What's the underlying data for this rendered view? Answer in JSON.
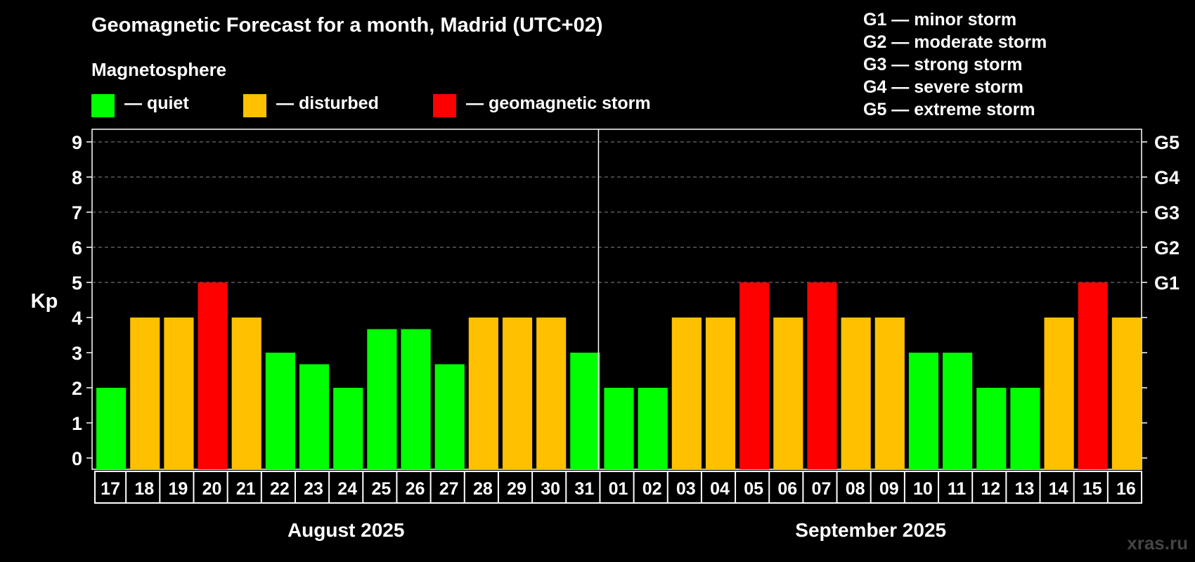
{
  "header": {
    "title": "Geomagnetic Forecast for a month, Madrid (UTC+02)",
    "subtitle": "Magnetosphere"
  },
  "legend": [
    {
      "label": "— quiet",
      "color": "#00ff00"
    },
    {
      "label": "— disturbed",
      "color": "#ffc000"
    },
    {
      "label": "— geomagnetic storm",
      "color": "#ff0000"
    }
  ],
  "gscale": [
    "G1 — minor storm",
    "G2 — moderate storm",
    "G3 — strong storm",
    "G4 — severe storm",
    "G5 — extreme storm"
  ],
  "watermark": "xras.ru",
  "chart_data": {
    "type": "bar",
    "ylabel": "Kp",
    "ylim": [
      0,
      9
    ],
    "yticks": [
      "0",
      "1",
      "2",
      "3",
      "4",
      "5",
      "6",
      "7",
      "8",
      "9"
    ],
    "right_ticks": [
      {
        "value": 5,
        "label": "G1"
      },
      {
        "value": 6,
        "label": "G2"
      },
      {
        "value": 7,
        "label": "G3"
      },
      {
        "value": 8,
        "label": "G4"
      },
      {
        "value": 9,
        "label": "G5"
      }
    ],
    "grid": "dashed horizontal at 5-9",
    "months": [
      {
        "label": "August 2025",
        "days": 15
      },
      {
        "label": "September 2025",
        "days": 16
      }
    ],
    "categories": [
      "17",
      "18",
      "19",
      "20",
      "21",
      "22",
      "23",
      "24",
      "25",
      "26",
      "27",
      "28",
      "29",
      "30",
      "31",
      "01",
      "02",
      "03",
      "04",
      "05",
      "06",
      "07",
      "08",
      "09",
      "10",
      "11",
      "12",
      "13",
      "14",
      "15",
      "16"
    ],
    "values": [
      2,
      4,
      4,
      5,
      4,
      3,
      2.67,
      2,
      3.67,
      3.67,
      2.67,
      4,
      4,
      4,
      3,
      2,
      2,
      4,
      4,
      5,
      4,
      5,
      4,
      4,
      3,
      3,
      2,
      2,
      4,
      5,
      4
    ],
    "levels": [
      "quiet",
      "disturbed",
      "disturbed",
      "storm",
      "disturbed",
      "quiet",
      "quiet",
      "quiet",
      "quiet",
      "quiet",
      "quiet",
      "disturbed",
      "disturbed",
      "disturbed",
      "quiet",
      "quiet",
      "quiet",
      "disturbed",
      "disturbed",
      "storm",
      "disturbed",
      "storm",
      "disturbed",
      "disturbed",
      "quiet",
      "quiet",
      "quiet",
      "quiet",
      "disturbed",
      "storm",
      "disturbed"
    ],
    "level_colors": {
      "quiet": "#00ff00",
      "disturbed": "#ffc000",
      "storm": "#ff0000"
    }
  }
}
